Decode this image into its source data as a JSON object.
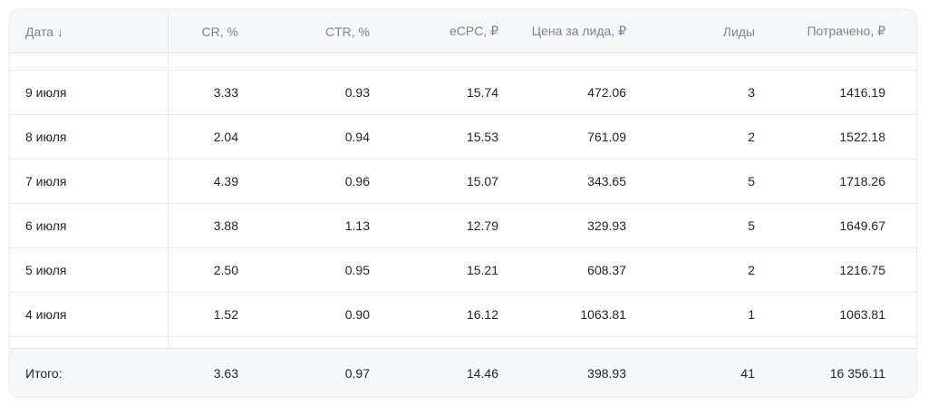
{
  "colors": {
    "header_background": "#f6f7f8",
    "header_text": "#7b8494",
    "body_text": "#21252b",
    "row_border": "#e8eaec",
    "card_border": "#ebedf0"
  },
  "icons": {
    "sort_descending_icon": "↓"
  },
  "table": {
    "columns": [
      {
        "label": "Дата"
      },
      {
        "label": "CR, %"
      },
      {
        "label": "CTR, %"
      },
      {
        "label": "eCPC, ₽"
      },
      {
        "label": "Цена за лида, ₽"
      },
      {
        "label": "Лиды"
      },
      {
        "label": "Потрачено, ₽"
      }
    ],
    "rows": [
      {
        "date": "9 июля",
        "cr": "3.33",
        "ctr": "0.93",
        "ecpc": "15.74",
        "cpl": "472.06",
        "leads": "3",
        "spent": "1416.19"
      },
      {
        "date": "8 июля",
        "cr": "2.04",
        "ctr": "0.94",
        "ecpc": "15.53",
        "cpl": "761.09",
        "leads": "2",
        "spent": "1522.18"
      },
      {
        "date": "7 июля",
        "cr": "4.39",
        "ctr": "0.96",
        "ecpc": "15.07",
        "cpl": "343.65",
        "leads": "5",
        "spent": "1718.26"
      },
      {
        "date": "6 июля",
        "cr": "3.88",
        "ctr": "1.13",
        "ecpc": "12.79",
        "cpl": "329.93",
        "leads": "5",
        "spent": "1649.67"
      },
      {
        "date": "5 июля",
        "cr": "2.50",
        "ctr": "0.95",
        "ecpc": "15.21",
        "cpl": "608.37",
        "leads": "2",
        "spent": "1216.75"
      },
      {
        "date": "4 июля",
        "cr": "1.52",
        "ctr": "0.90",
        "ecpc": "16.12",
        "cpl": "1063.81",
        "leads": "1",
        "spent": "1063.81"
      }
    ],
    "total": {
      "label": "Итого:",
      "cr": "3.63",
      "ctr": "0.97",
      "ecpc": "14.46",
      "cpl": "398.93",
      "leads": "41",
      "spent": "16 356.11"
    }
  }
}
